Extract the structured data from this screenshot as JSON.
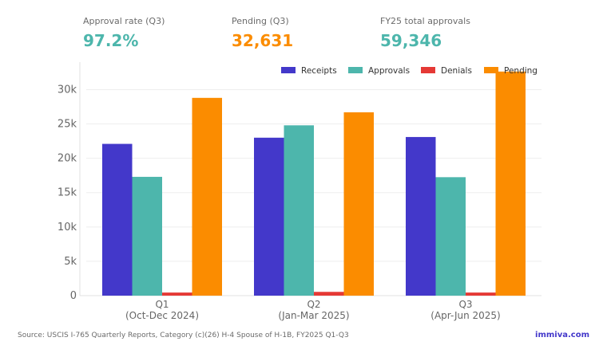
{
  "kpis": [
    {
      "label": "Approval rate (Q3)",
      "value": "97.2%",
      "color": "#4db6ac"
    },
    {
      "label": "Pending (Q3)",
      "value": "32,631",
      "color": "#fb8c00"
    },
    {
      "label": "FY25 total approvals",
      "value": "59,346",
      "color": "#4db6ac"
    }
  ],
  "footer": {
    "source": "Source: USCIS I-765 Quarterly Reports, Category (c)(26) H-4 Spouse of H-1B, FY2025 Q1-Q3",
    "brand": "immiva.com",
    "brand_color": "#4338ca"
  },
  "chart_data": {
    "type": "bar",
    "categories": [
      {
        "line1": "Q1",
        "line2": "(Oct-Dec 2024)"
      },
      {
        "line1": "Q2",
        "line2": "(Jan-Mar 2025)"
      },
      {
        "line1": "Q3",
        "line2": "(Apr-Jun 2025)"
      }
    ],
    "series": [
      {
        "name": "Receipts",
        "color": "#4338ca",
        "values": [
          22100,
          23000,
          23100
        ]
      },
      {
        "name": "Approvals",
        "color": "#4db6ac",
        "values": [
          17300,
          24800,
          17250
        ]
      },
      {
        "name": "Denials",
        "color": "#e53935",
        "values": [
          450,
          550,
          450
        ]
      },
      {
        "name": "Pending",
        "color": "#fb8c00",
        "values": [
          28800,
          26700,
          32631
        ]
      }
    ],
    "yticks": [
      {
        "value": 0,
        "label": "0"
      },
      {
        "value": 5000,
        "label": "5k"
      },
      {
        "value": 10000,
        "label": "10k"
      },
      {
        "value": 15000,
        "label": "15k"
      },
      {
        "value": 20000,
        "label": "20k"
      },
      {
        "value": 25000,
        "label": "25k"
      },
      {
        "value": 30000,
        "label": "30k"
      }
    ],
    "ylim": [
      0,
      34000
    ],
    "grid": true,
    "legend": "top-right"
  }
}
